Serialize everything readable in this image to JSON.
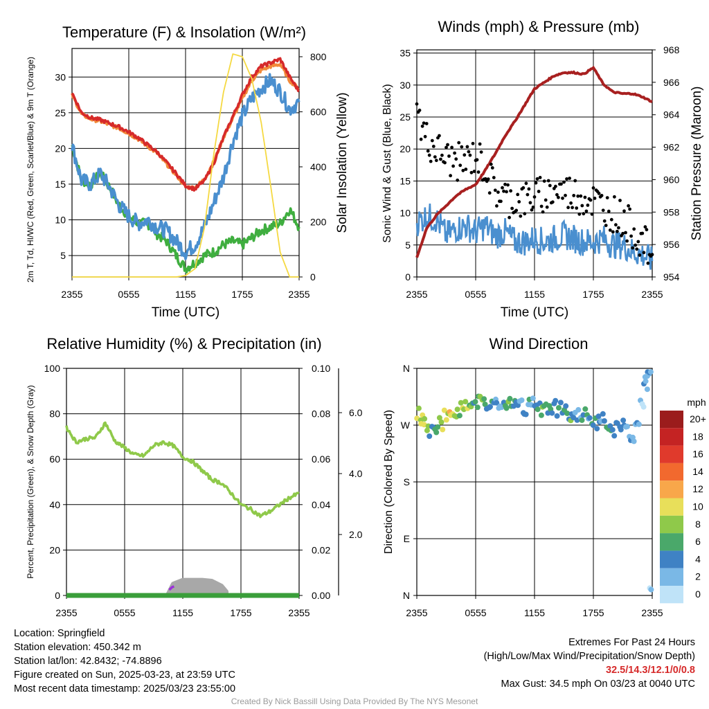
{
  "x_ticks": [
    "2355",
    "0555",
    "1155",
    "1755",
    "2355"
  ],
  "x_label": "Time (UTC)",
  "colors": {
    "temp_red": "#d62a2a",
    "temp_orange": "#f28a3a",
    "temp_green": "#3fae3f",
    "temp_blue": "#4a8fcf",
    "solar": "#f5d942",
    "wind": "#4a8fcf",
    "gust": "#000000",
    "pressure": "#a82020",
    "rh": "#8fc94a",
    "precip": "#3a9e3a",
    "snow": "#a8a8a8",
    "purple": "#9b30d9",
    "extremes": "#d62a2a"
  },
  "panels": {
    "temp": {
      "title": "Temperature (F) & Insolation (W/m²)",
      "left_label": "2m T, Td, HI/WC (Red, Green, Scarlet/Blue) & 9m T (Orange)",
      "right_label": "Solar Insolation (Yellow)"
    },
    "wind": {
      "title": "Winds (mph) & Pressure (mb)",
      "left_label": "Sonic Wind & Gust (Blue, Black)",
      "right_label": "Station Pressure (Maroon)"
    },
    "rh": {
      "title": "Relative Humidity (%) & Precipitation (in)",
      "left_label": "Percent, Precipitation (Green), & Snow Depth (Gray)"
    },
    "dir": {
      "title": "Wind Direction",
      "left_label": "Direction (Colored By Speed)"
    }
  },
  "colorbar": {
    "title": "mph",
    "labels": [
      "20+",
      "18",
      "16",
      "14",
      "12",
      "10",
      "8",
      "6",
      "4",
      "2",
      "0"
    ],
    "colors": [
      "#9b1c1c",
      "#c42323",
      "#e03a2c",
      "#f2692e",
      "#f8a74a",
      "#e8df5a",
      "#8fc94a",
      "#4aa86a",
      "#3f82c4",
      "#7ab8e6",
      "#bfe3f8"
    ]
  },
  "info": {
    "location": "Location: Springfield",
    "elevation": "Station elevation: 450.342 m",
    "latlon": "Station lat/lon: 42.8432; -74.8896",
    "created": "Figure created on Sun, 2025-03-23, at 23:59 UTC",
    "recent": "Most recent data timestamp: 2025/03/23 23:55:00",
    "extremes_title": "Extremes For Past 24 Hours",
    "extremes_sub": "(High/Low/Max Wind/Precipitation/Snow Depth)",
    "extremes_values": "32.5/14.3/12.1/0/0.8",
    "max_gust": "Max Gust: 34.5 mph On 03/23 at 0040 UTC",
    "credit": "Created By Nick Bassill Using Data Provided By The NYS Mesonet"
  },
  "chart_data": [
    {
      "type": "line",
      "title": "Temperature (F) & Insolation (W/m²)",
      "xlabel": "Time (UTC)",
      "ylabel": "2m T, Td, HI/WC (Red, Green, Scarlet/Blue) & 9m T (Orange)",
      "y2label": "Solar Insolation (Yellow)",
      "x_ticks": [
        "2355",
        "0555",
        "1155",
        "1755",
        "2355"
      ],
      "ylim": [
        2,
        34
      ],
      "y_ticks": [
        5,
        10,
        15,
        20,
        25,
        30
      ],
      "y2lim": [
        0,
        830
      ],
      "y2_ticks": [
        0,
        200,
        400,
        600,
        800
      ],
      "x_hours": [
        0,
        1,
        2,
        3,
        4,
        5,
        6,
        7,
        8,
        9,
        10,
        11,
        12,
        13,
        14,
        15,
        16,
        17,
        18,
        19,
        20,
        21,
        22,
        23,
        24
      ],
      "series": [
        {
          "color": "red",
          "axis": "left",
          "values": [
            27.8,
            25.0,
            24.3,
            24.0,
            23.5,
            23.0,
            22.3,
            21.5,
            20.5,
            19.5,
            18.0,
            16.5,
            14.8,
            14.3,
            15.5,
            18.0,
            21.5,
            24.5,
            27.5,
            30.0,
            31.5,
            32.0,
            32.5,
            30.0,
            28.0
          ]
        },
        {
          "color": "orange",
          "axis": "left",
          "values": [
            27.5,
            24.8,
            24.1,
            23.8,
            23.3,
            22.8,
            22.1,
            21.3,
            20.3,
            19.3,
            17.8,
            16.3,
            14.6,
            14.5,
            15.7,
            18.2,
            21.5,
            24.2,
            27.0,
            29.5,
            31.0,
            31.5,
            31.8,
            29.5,
            28.3
          ]
        },
        {
          "color": "blue",
          "axis": "left",
          "values": [
            20.5,
            15.5,
            15.0,
            16.5,
            14.5,
            12.0,
            10.5,
            9.5,
            10.0,
            9.0,
            8.5,
            7.0,
            5.5,
            6.5,
            9.0,
            12.5,
            16.0,
            21.0,
            24.5,
            27.0,
            28.5,
            29.5,
            28.0,
            25.5,
            26.5
          ]
        },
        {
          "color": "green",
          "axis": "left",
          "values": [
            20.5,
            15.5,
            15.0,
            16.5,
            14.5,
            12.0,
            10.5,
            9.5,
            9.5,
            8.0,
            7.0,
            5.0,
            3.2,
            4.0,
            5.0,
            5.5,
            6.5,
            7.0,
            6.5,
            7.5,
            8.5,
            9.0,
            9.5,
            11.5,
            9.0
          ]
        },
        {
          "color": "yellow",
          "axis": "right",
          "values": [
            0,
            0,
            0,
            0,
            0,
            0,
            0,
            0,
            0,
            0,
            0,
            0,
            5,
            30,
            180,
            450,
            670,
            810,
            800,
            720,
            560,
            330,
            90,
            0,
            0
          ]
        }
      ]
    },
    {
      "type": "line",
      "title": "Winds (mph) & Pressure (mb)",
      "xlabel": "Time (UTC)",
      "ylabel": "Sonic Wind & Gust (Blue, Black)",
      "y2label": "Station Pressure (Maroon)",
      "x_ticks": [
        "2355",
        "0555",
        "1155",
        "1755",
        "2355"
      ],
      "ylim": [
        0,
        35.5
      ],
      "y_ticks": [
        0,
        5,
        10,
        15,
        20,
        25,
        30,
        35
      ],
      "y2lim": [
        954,
        968
      ],
      "y2_ticks": [
        954,
        956,
        958,
        960,
        962,
        964,
        966,
        968
      ],
      "x_hours": [
        0,
        1,
        2,
        3,
        4,
        5,
        6,
        7,
        8,
        9,
        10,
        11,
        12,
        13,
        14,
        15,
        16,
        17,
        18,
        19,
        20,
        21,
        22,
        23,
        24
      ],
      "series": [
        {
          "color": "blue",
          "axis": "left",
          "values": [
            8.5,
            9.5,
            9.0,
            6.5,
            7.5,
            8.0,
            7.0,
            8.0,
            6.5,
            7.0,
            5.5,
            5.5,
            6.0,
            5.5,
            6.0,
            6.5,
            6.0,
            5.5,
            5.5,
            6.0,
            5.0,
            5.0,
            4.0,
            3.5,
            2.5
          ]
        },
        {
          "color": "black",
          "axis": "left",
          "style": "points",
          "values": [
            25.5,
            21.5,
            20.0,
            18.5,
            18.0,
            18.0,
            19.0,
            17.0,
            13.5,
            12.5,
            12.0,
            12.0,
            12.5,
            13.0,
            13.5,
            13.5,
            13.0,
            12.5,
            12.0,
            11.0,
            10.0,
            9.0,
            7.5,
            5.5,
            3.5
          ]
        },
        {
          "color": "maroon",
          "axis": "right",
          "values": [
            955.2,
            957.0,
            957.8,
            958.4,
            959.0,
            959.4,
            959.7,
            960.6,
            961.6,
            962.7,
            963.6,
            964.6,
            965.6,
            966.0,
            966.4,
            966.6,
            966.6,
            966.5,
            966.9,
            965.9,
            965.4,
            965.3,
            965.3,
            965.1,
            964.8
          ]
        }
      ]
    },
    {
      "type": "line",
      "title": "Relative Humidity (%) & Precipitation (in)",
      "xlabel": "",
      "ylabel": "Percent, Precipitation (Green), & Snow Depth (Gray)",
      "x_ticks": [
        "2355",
        "0555",
        "1155",
        "1755",
        "2355"
      ],
      "ylim": [
        0,
        100
      ],
      "y_ticks": [
        0,
        20,
        40,
        60,
        80,
        100
      ],
      "y2lim": [
        0,
        0.1
      ],
      "y2_ticks": [
        "0.00",
        "0.02",
        "0.04",
        "0.06",
        "0.08",
        "0.10"
      ],
      "y3_ticks": [
        "2.0",
        "4.0",
        "6.0"
      ],
      "x_hours": [
        0,
        1,
        2,
        3,
        4,
        5,
        6,
        7,
        8,
        9,
        10,
        11,
        12,
        13,
        14,
        15,
        16,
        17,
        18,
        19,
        20,
        21,
        22,
        23,
        24
      ],
      "series": [
        {
          "color": "green-light",
          "axis": "left",
          "values": [
            74.0,
            67.5,
            69.0,
            69.5,
            76.0,
            68.0,
            65.0,
            62.0,
            61.5,
            66.0,
            67.5,
            66.0,
            61.0,
            59.0,
            55.0,
            51.0,
            49.5,
            45.0,
            40.0,
            38.0,
            35.0,
            37.0,
            40.0,
            43.0,
            45.0
          ]
        },
        {
          "color": "green-dark",
          "axis": "right",
          "values": [
            0,
            0,
            0,
            0,
            0,
            0,
            0,
            0,
            0,
            0,
            0,
            0,
            0,
            0,
            0,
            0,
            0,
            0,
            0,
            0,
            0,
            0,
            0,
            0,
            0
          ]
        },
        {
          "color": "gray",
          "axis": "right3",
          "x_hours": [
            10.5,
            11.0,
            12.0,
            13.0,
            14.0,
            15.0,
            16.0,
            16.5
          ],
          "values": [
            0.1,
            0.6,
            0.8,
            0.8,
            0.8,
            0.75,
            0.5,
            0.2
          ]
        }
      ]
    },
    {
      "type": "scatter",
      "title": "Wind Direction",
      "ylabel": "Direction (Colored By Speed)",
      "x_ticks": [
        "2355",
        "0555",
        "1155",
        "1755",
        "2355"
      ],
      "y_ticks": [
        "N",
        "E",
        "S",
        "W",
        "N"
      ],
      "ylim": [
        0,
        360
      ],
      "x_hours": [
        0.2,
        0.6,
        1.0,
        1.5,
        2.0,
        2.5,
        3.0,
        3.5,
        4.0,
        4.5,
        5.0,
        5.5,
        6.0,
        6.5,
        7.0,
        7.5,
        8.0,
        8.5,
        9.0,
        9.5,
        10.0,
        10.5,
        11.0,
        11.5,
        12.0,
        12.5,
        13.0,
        13.5,
        14.0,
        14.5,
        15.0,
        15.5,
        16.0,
        16.5,
        17.0,
        17.5,
        18.0,
        18.5,
        19.0,
        19.5,
        20.0,
        20.5,
        21.0,
        21.5,
        22.0,
        22.5,
        23.0,
        23.3,
        23.5,
        23.7,
        23.9
      ],
      "values": [
        285,
        275,
        270,
        260,
        265,
        272,
        285,
        290,
        292,
        295,
        296,
        300,
        302,
        305,
        306,
        304,
        300,
        298,
        302,
        305,
        300,
        298,
        295,
        300,
        302,
        295,
        298,
        294,
        300,
        296,
        290,
        285,
        280,
        285,
        288,
        282,
        278,
        275,
        280,
        270,
        265,
        272,
        268,
        262,
        255,
        265,
        300,
        330,
        345,
        345,
        20
      ],
      "speeds": [
        9,
        10,
        8,
        6,
        7,
        9,
        10,
        11,
        10,
        9,
        9,
        8,
        6,
        8,
        7,
        6,
        5,
        5,
        6,
        7,
        5,
        4,
        6,
        5,
        5,
        6,
        7,
        6,
        5,
        6,
        6,
        7,
        5,
        4,
        6,
        5,
        7,
        6,
        4,
        5,
        6,
        4,
        4,
        3,
        4,
        3,
        2,
        3,
        4,
        3,
        3
      ]
    }
  ]
}
